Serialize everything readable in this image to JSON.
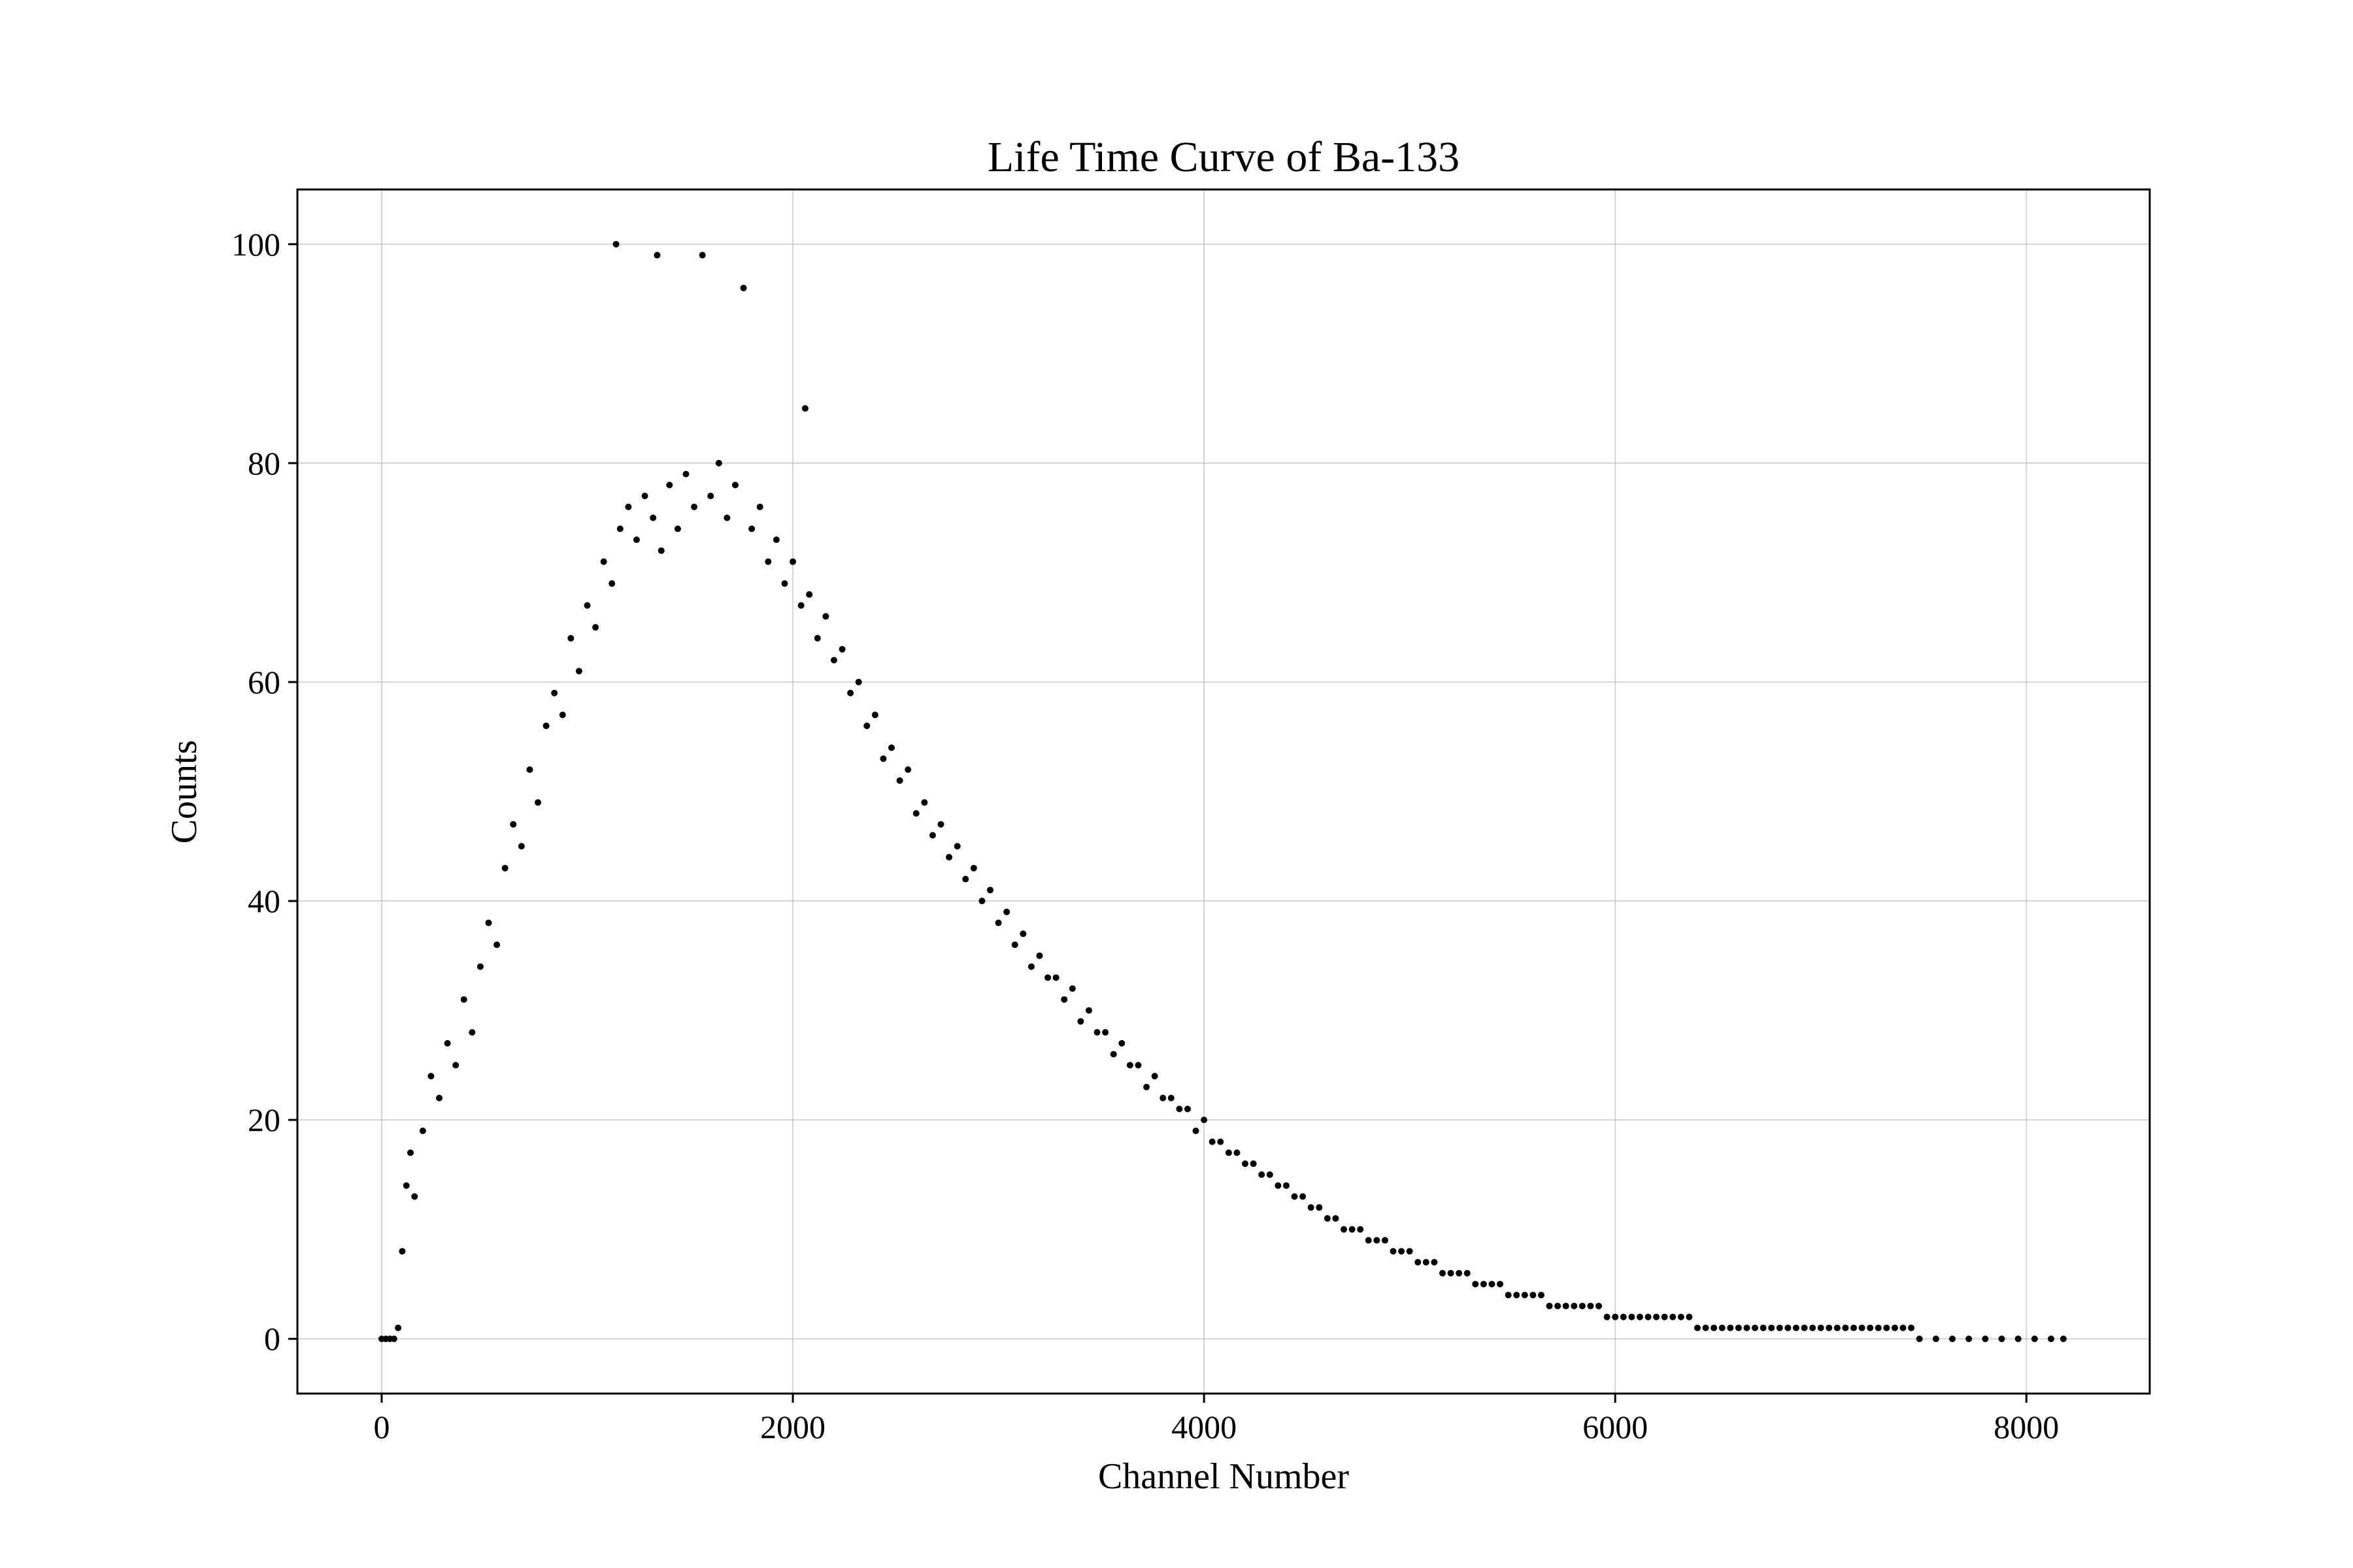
{
  "chart_data": {
    "type": "scatter",
    "title": "Life Time Curve of Ba-133",
    "xlabel": "Channel Number",
    "ylabel": "Counts",
    "xlim": [
      -410,
      8600
    ],
    "ylim": [
      -5,
      105
    ],
    "xticks": [
      0,
      2000,
      4000,
      6000,
      8000
    ],
    "yticks": [
      0,
      20,
      40,
      60,
      80,
      100
    ],
    "grid": true,
    "marker_color": "#000000",
    "series": [
      {
        "points": [
          [
            0,
            0
          ],
          [
            20,
            0
          ],
          [
            40,
            0
          ],
          [
            60,
            0
          ],
          [
            80,
            1
          ],
          [
            100,
            8
          ],
          [
            120,
            14
          ],
          [
            140,
            17
          ],
          [
            160,
            13
          ],
          [
            200,
            19
          ],
          [
            240,
            24
          ],
          [
            280,
            22
          ],
          [
            320,
            27
          ],
          [
            360,
            25
          ],
          [
            400,
            31
          ],
          [
            440,
            28
          ],
          [
            480,
            34
          ],
          [
            520,
            38
          ],
          [
            560,
            36
          ],
          [
            600,
            43
          ],
          [
            640,
            47
          ],
          [
            680,
            45
          ],
          [
            720,
            52
          ],
          [
            760,
            49
          ],
          [
            800,
            56
          ],
          [
            840,
            59
          ],
          [
            880,
            57
          ],
          [
            920,
            64
          ],
          [
            960,
            61
          ],
          [
            1000,
            67
          ],
          [
            1040,
            65
          ],
          [
            1080,
            71
          ],
          [
            1120,
            69
          ],
          [
            1140,
            100
          ],
          [
            1160,
            74
          ],
          [
            1200,
            76
          ],
          [
            1240,
            73
          ],
          [
            1280,
            77
          ],
          [
            1320,
            75
          ],
          [
            1340,
            99
          ],
          [
            1360,
            72
          ],
          [
            1400,
            78
          ],
          [
            1440,
            74
          ],
          [
            1480,
            79
          ],
          [
            1520,
            76
          ],
          [
            1560,
            99
          ],
          [
            1600,
            77
          ],
          [
            1640,
            80
          ],
          [
            1680,
            75
          ],
          [
            1720,
            78
          ],
          [
            1760,
            96
          ],
          [
            1800,
            74
          ],
          [
            1840,
            76
          ],
          [
            1880,
            71
          ],
          [
            1920,
            73
          ],
          [
            1960,
            69
          ],
          [
            2000,
            71
          ],
          [
            2040,
            67
          ],
          [
            2060,
            85
          ],
          [
            2080,
            68
          ],
          [
            2120,
            64
          ],
          [
            2160,
            66
          ],
          [
            2200,
            62
          ],
          [
            2240,
            63
          ],
          [
            2280,
            59
          ],
          [
            2320,
            60
          ],
          [
            2360,
            56
          ],
          [
            2400,
            57
          ],
          [
            2440,
            53
          ],
          [
            2480,
            54
          ],
          [
            2520,
            51
          ],
          [
            2560,
            52
          ],
          [
            2600,
            48
          ],
          [
            2640,
            49
          ],
          [
            2680,
            46
          ],
          [
            2720,
            47
          ],
          [
            2760,
            44
          ],
          [
            2800,
            45
          ],
          [
            2840,
            42
          ],
          [
            2880,
            43
          ],
          [
            2920,
            40
          ],
          [
            2960,
            41
          ],
          [
            3000,
            38
          ],
          [
            3040,
            39
          ],
          [
            3080,
            36
          ],
          [
            3120,
            37
          ],
          [
            3160,
            34
          ],
          [
            3200,
            35
          ],
          [
            3240,
            33
          ],
          [
            3280,
            33
          ],
          [
            3320,
            31
          ],
          [
            3360,
            32
          ],
          [
            3400,
            29
          ],
          [
            3440,
            30
          ],
          [
            3480,
            28
          ],
          [
            3520,
            28
          ],
          [
            3560,
            26
          ],
          [
            3600,
            27
          ],
          [
            3640,
            25
          ],
          [
            3680,
            25
          ],
          [
            3720,
            23
          ],
          [
            3760,
            24
          ],
          [
            3800,
            22
          ],
          [
            3840,
            22
          ],
          [
            3880,
            21
          ],
          [
            3920,
            21
          ],
          [
            3960,
            19
          ],
          [
            4000,
            20
          ],
          [
            4040,
            18
          ],
          [
            4080,
            18
          ],
          [
            4120,
            17
          ],
          [
            4160,
            17
          ],
          [
            4200,
            16
          ],
          [
            4240,
            16
          ],
          [
            4280,
            15
          ],
          [
            4320,
            15
          ],
          [
            4360,
            14
          ],
          [
            4400,
            14
          ],
          [
            4440,
            13
          ],
          [
            4480,
            13
          ],
          [
            4520,
            12
          ],
          [
            4560,
            12
          ],
          [
            4600,
            11
          ],
          [
            4640,
            11
          ],
          [
            4680,
            10
          ],
          [
            4720,
            10
          ],
          [
            4760,
            10
          ],
          [
            4800,
            9
          ],
          [
            4840,
            9
          ],
          [
            4880,
            9
          ],
          [
            4920,
            8
          ],
          [
            4960,
            8
          ],
          [
            5000,
            8
          ],
          [
            5040,
            7
          ],
          [
            5080,
            7
          ],
          [
            5120,
            7
          ],
          [
            5160,
            6
          ],
          [
            5200,
            6
          ],
          [
            5240,
            6
          ],
          [
            5280,
            6
          ],
          [
            5320,
            5
          ],
          [
            5360,
            5
          ],
          [
            5400,
            5
          ],
          [
            5440,
            5
          ],
          [
            5480,
            4
          ],
          [
            5520,
            4
          ],
          [
            5560,
            4
          ],
          [
            5600,
            4
          ],
          [
            5640,
            4
          ],
          [
            5680,
            3
          ],
          [
            5720,
            3
          ],
          [
            5760,
            3
          ],
          [
            5800,
            3
          ],
          [
            5840,
            3
          ],
          [
            5880,
            3
          ],
          [
            5920,
            3
          ],
          [
            5960,
            2
          ],
          [
            6000,
            2
          ],
          [
            6040,
            2
          ],
          [
            6080,
            2
          ],
          [
            6120,
            2
          ],
          [
            6160,
            2
          ],
          [
            6200,
            2
          ],
          [
            6240,
            2
          ],
          [
            6280,
            2
          ],
          [
            6320,
            2
          ],
          [
            6360,
            2
          ],
          [
            6400,
            1
          ],
          [
            6440,
            1
          ],
          [
            6480,
            1
          ],
          [
            6520,
            1
          ],
          [
            6560,
            1
          ],
          [
            6600,
            1
          ],
          [
            6640,
            1
          ],
          [
            6680,
            1
          ],
          [
            6720,
            1
          ],
          [
            6760,
            1
          ],
          [
            6800,
            1
          ],
          [
            6840,
            1
          ],
          [
            6880,
            1
          ],
          [
            6920,
            1
          ],
          [
            6960,
            1
          ],
          [
            7000,
            1
          ],
          [
            7040,
            1
          ],
          [
            7080,
            1
          ],
          [
            7120,
            1
          ],
          [
            7160,
            1
          ],
          [
            7200,
            1
          ],
          [
            7240,
            1
          ],
          [
            7280,
            1
          ],
          [
            7320,
            1
          ],
          [
            7360,
            1
          ],
          [
            7400,
            1
          ],
          [
            7440,
            1
          ],
          [
            7480,
            0
          ],
          [
            7560,
            0
          ],
          [
            7640,
            0
          ],
          [
            7720,
            0
          ],
          [
            7800,
            0
          ],
          [
            7880,
            0
          ],
          [
            7960,
            0
          ],
          [
            8040,
            0
          ],
          [
            8120,
            0
          ],
          [
            8180,
            0
          ]
        ]
      }
    ]
  }
}
